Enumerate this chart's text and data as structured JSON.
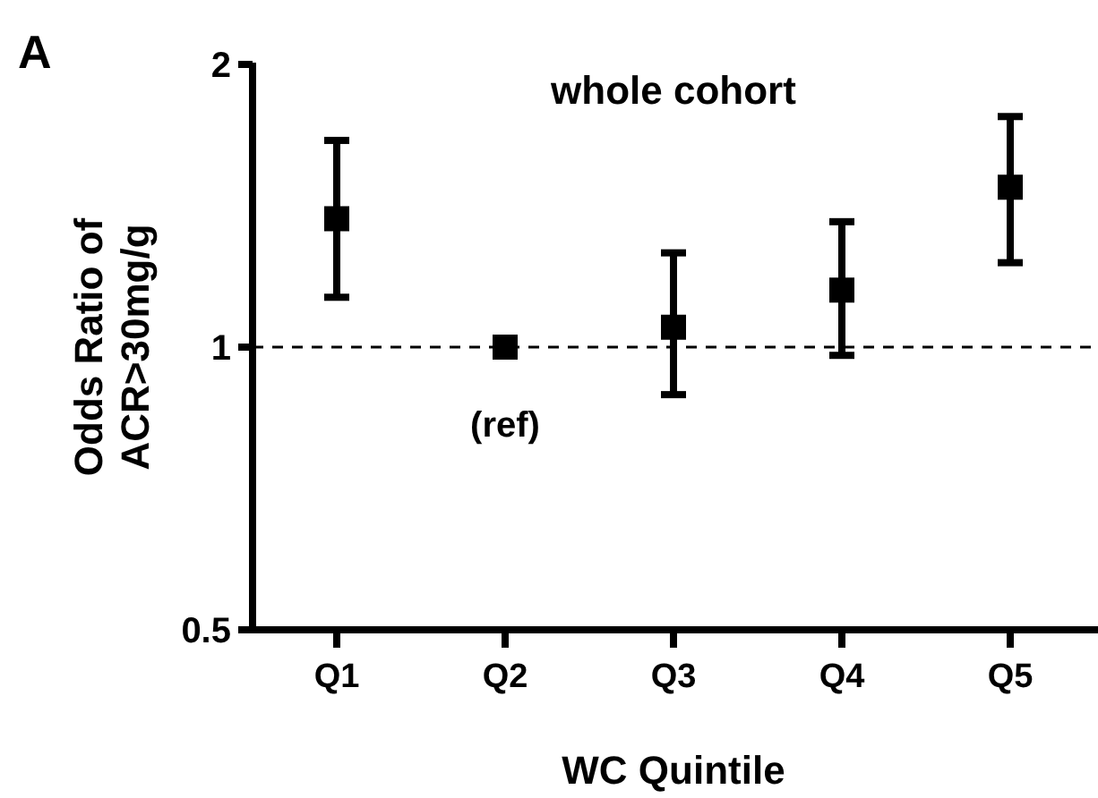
{
  "chart_data": {
    "type": "scatter",
    "title": "whole cohort",
    "xlabel": "WC Quintile",
    "ylabel": "Odds  Ratio of\nACR>30mg/g",
    "categories": [
      "Q1",
      "Q2",
      "Q3",
      "Q4",
      "Q5"
    ],
    "series": [
      {
        "color": "#000000",
        "values": [
          1.37,
          1,
          1.05,
          1.15,
          1.48
        ],
        "errors": [
          [
            1.13,
            1.66
          ],
          null,
          [
            0.89,
            1.26
          ],
          [
            0.98,
            1.36
          ],
          [
            1.23,
            1.76
          ]
        ]
      }
    ],
    "log": "y",
    "ylim": [
      0.5,
      2
    ],
    "yticks": [
      0.5,
      1,
      2
    ],
    "marker": "square",
    "grid": false,
    "ref_lines": [
      {
        "axis": "y",
        "value": 1,
        "line_style": "dashed",
        "color": "#000000"
      }
    ],
    "annotations": [
      "A",
      "(ref)"
    ]
  }
}
